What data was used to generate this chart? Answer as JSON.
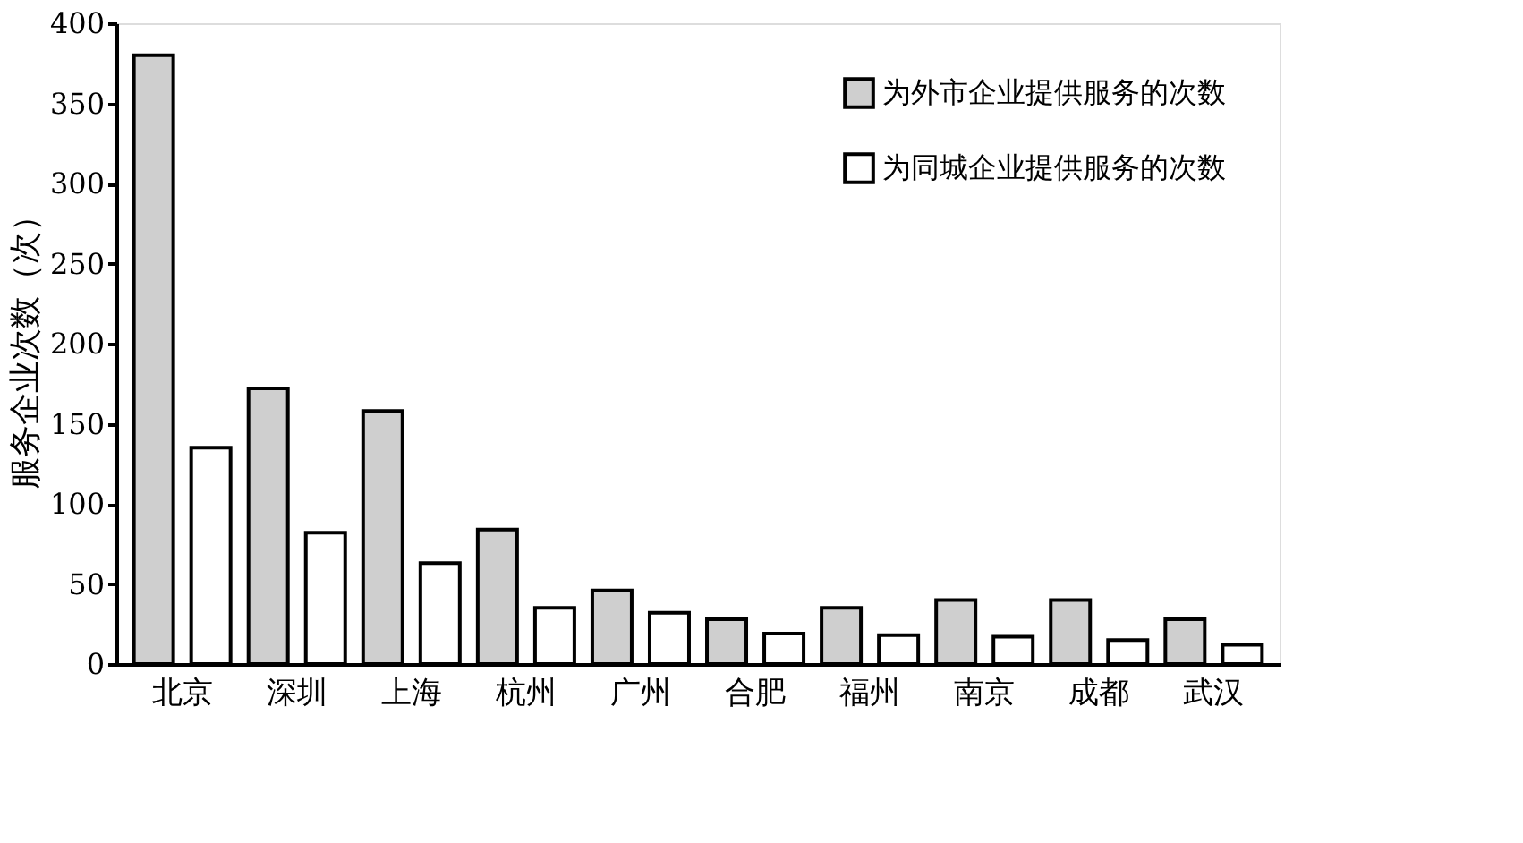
{
  "chart_data": {
    "type": "bar",
    "ylabel": "服务企业次数（次）",
    "categories": [
      "北京",
      "深圳",
      "上海",
      "杭州",
      "广州",
      "合肥",
      "福州",
      "南京",
      "成都",
      "武汉"
    ],
    "series": [
      {
        "name": "为外市企业提供服务的次数",
        "color": "#cfcfcf",
        "values": [
          380,
          172,
          158,
          84,
          46,
          28,
          35,
          40,
          40,
          28
        ]
      },
      {
        "name": "为同城企业提供服务的次数",
        "color": "#ffffff",
        "values": [
          135,
          82,
          63,
          35,
          32,
          19,
          18,
          17,
          15,
          12
        ]
      }
    ],
    "ylim": [
      0,
      400
    ],
    "yticks": [
      0,
      50,
      100,
      150,
      200,
      250,
      300,
      350,
      400
    ],
    "grid": false,
    "legend": "top right"
  }
}
